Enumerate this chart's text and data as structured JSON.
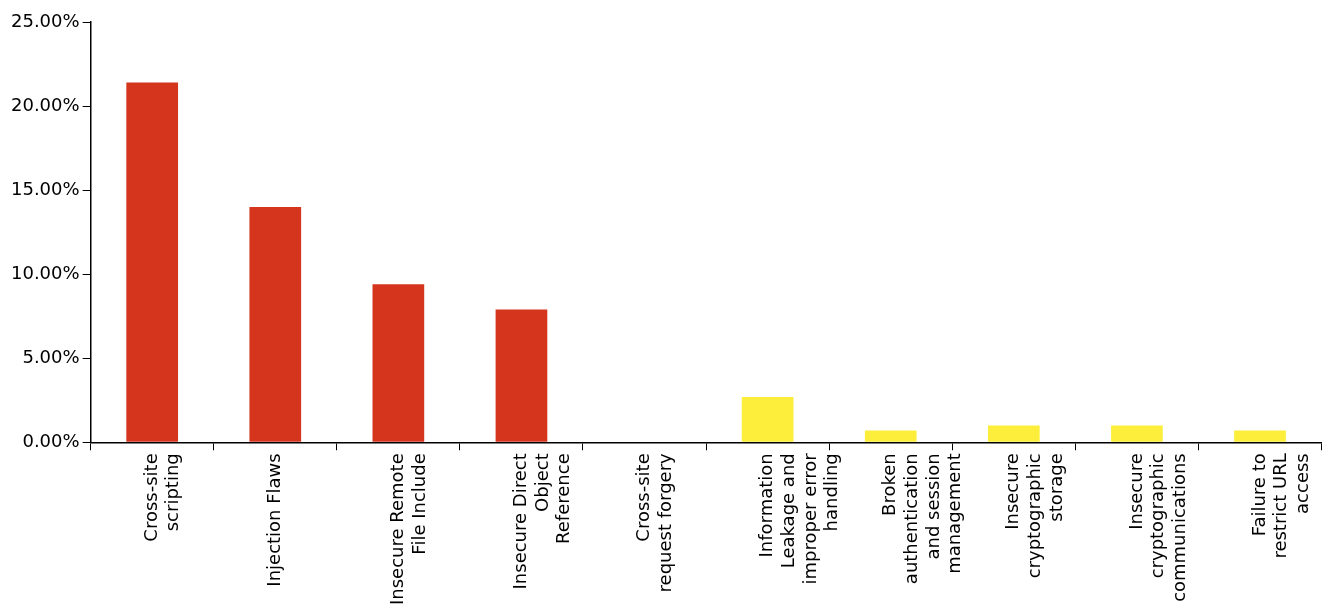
{
  "chart_data": {
    "type": "bar",
    "categories": [
      "Cross-site scripting",
      "Injection Flaws",
      "Insecure Remote File Include",
      "Insecure Direct Object Reference",
      "Cross-site request forgery",
      "Information Leakage and improper error handling",
      "Broken authentication and session management",
      "Insecure cryptographic storage",
      "Insecure cryptographic communications",
      "Failure to restrict URL access"
    ],
    "values": [
      21.4,
      14.0,
      9.4,
      7.9,
      0,
      2.7,
      0.7,
      1.0,
      1.0,
      0.7
    ],
    "colors": [
      "#d4351c",
      "#d4351c",
      "#d4351c",
      "#d4351c",
      "#d4351c",
      "#fcee3a",
      "#fcee3a",
      "#fcee3a",
      "#fcee3a",
      "#fcee3a"
    ],
    "ylim": [
      0,
      25
    ],
    "yticks": [
      {
        "value": 0,
        "label": "0.00%"
      },
      {
        "value": 5,
        "label": "5.00%"
      },
      {
        "value": 10,
        "label": "10.00%"
      },
      {
        "value": 15,
        "label": "15.00%"
      },
      {
        "value": 20,
        "label": "20.00%"
      },
      {
        "value": 25,
        "label": "25.00%"
      }
    ],
    "grid": false,
    "legend": false
  }
}
